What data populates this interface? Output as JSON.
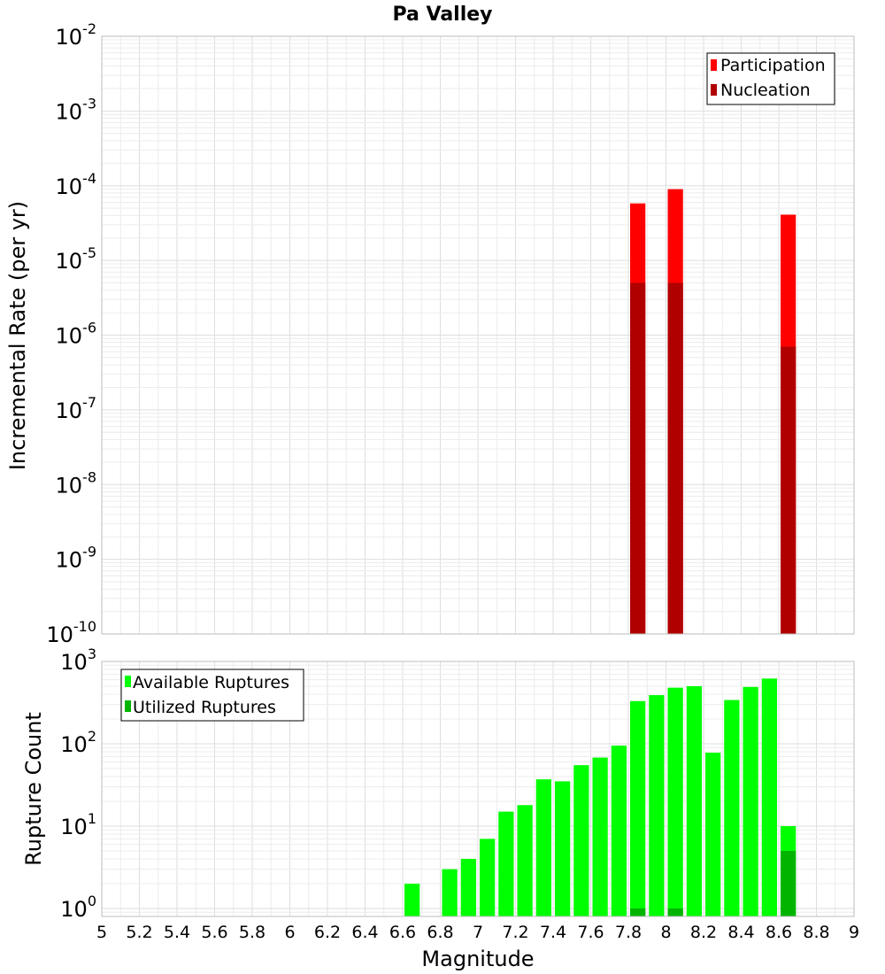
{
  "chart_data": [
    {
      "type": "bar",
      "title": "Pa Valley",
      "ylabel": "Incremental Rate (per yr)",
      "yscale": "log",
      "ylim": [
        1e-10,
        0.01
      ],
      "yticks": [
        {
          "base": "10",
          "exp": "-10"
        },
        {
          "base": "10",
          "exp": "-9"
        },
        {
          "base": "10",
          "exp": "-8"
        },
        {
          "base": "10",
          "exp": "-7"
        },
        {
          "base": "10",
          "exp": "-6"
        },
        {
          "base": "10",
          "exp": "-5"
        },
        {
          "base": "10",
          "exp": "-4"
        },
        {
          "base": "10",
          "exp": "-3"
        },
        {
          "base": "10",
          "exp": "-2"
        }
      ],
      "grid": true,
      "legend_position": "top-right",
      "series": [
        {
          "name": "Participation",
          "color": "#ff0000",
          "x": [
            7.85,
            8.05,
            8.65
          ],
          "values": [
            5.8e-05,
            9e-05,
            4.1e-05
          ]
        },
        {
          "name": "Nucleation",
          "color": "#b00000",
          "x": [
            7.85,
            8.05,
            8.65
          ],
          "values": [
            5e-06,
            5e-06,
            7e-07
          ]
        }
      ]
    },
    {
      "type": "bar",
      "xlabel": "Magnitude",
      "ylabel": "Rupture Count",
      "yscale": "log",
      "ylim": [
        0.8,
        1000
      ],
      "xlim": [
        5,
        9
      ],
      "xticks": [
        "5",
        "5.2",
        "5.4",
        "5.6",
        "5.8",
        "6",
        "6.2",
        "6.4",
        "6.6",
        "6.8",
        "7",
        "7.2",
        "7.4",
        "7.6",
        "7.8",
        "8",
        "8.2",
        "8.4",
        "8.6",
        "8.8",
        "9"
      ],
      "yticks": [
        {
          "base": "10",
          "exp": "0"
        },
        {
          "base": "10",
          "exp": "1"
        },
        {
          "base": "10",
          "exp": "2"
        },
        {
          "base": "10",
          "exp": "3"
        }
      ],
      "grid": true,
      "legend_position": "top-left",
      "series": [
        {
          "name": "Available Ruptures",
          "color": "#00ff00",
          "x": [
            6.65,
            6.85,
            6.95,
            7.05,
            7.15,
            7.25,
            7.35,
            7.45,
            7.55,
            7.65,
            7.75,
            7.85,
            7.95,
            8.05,
            8.15,
            8.25,
            8.35,
            8.45,
            8.55,
            8.65
          ],
          "values": [
            2,
            3,
            4,
            7,
            15,
            18,
            37,
            35,
            55,
            68,
            95,
            330,
            390,
            480,
            500,
            78,
            340,
            490,
            620,
            10
          ]
        },
        {
          "name": "Utilized Ruptures",
          "color": "#00b400",
          "x": [
            7.85,
            8.05,
            8.65
          ],
          "values": [
            1,
            1,
            5
          ]
        }
      ]
    }
  ]
}
